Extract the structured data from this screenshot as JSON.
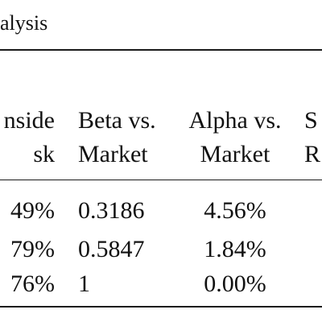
{
  "table": {
    "caption": "alysis",
    "header_row1": [
      "nside",
      "Beta vs.",
      "Alpha vs.",
      "S"
    ],
    "header_row2": [
      "sk",
      "Market",
      "Market",
      "R"
    ],
    "rows": [
      [
        "49%",
        "0.3186",
        "4.56%",
        ""
      ],
      [
        "79%",
        "0.5847",
        "1.84%",
        ""
      ],
      [
        "76%",
        "1",
        "0.00%",
        ""
      ]
    ]
  }
}
